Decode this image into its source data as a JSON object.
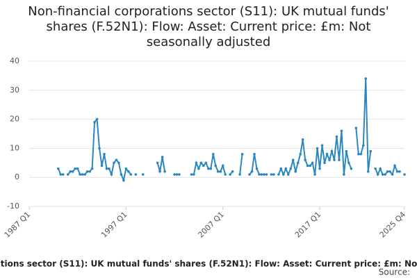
{
  "chart_data": {
    "type": "line",
    "title": "Non-financial corporations sector (S11): UK mutual funds' shares (F.52N1): Flow: Asset: Current price: £m: Not seasonally adjusted",
    "source": "Source:",
    "categories": [
      "1987 Q1",
      null,
      null,
      null,
      null,
      null,
      null,
      null,
      null,
      null,
      null,
      null,
      null,
      null,
      null,
      null,
      null,
      null,
      null,
      null,
      null,
      null,
      null,
      null,
      null,
      null,
      null,
      null,
      null,
      null,
      null,
      null,
      null,
      null,
      null,
      null,
      null,
      null,
      null,
      null,
      "1997 Q1",
      null,
      null,
      null,
      null,
      null,
      null,
      null,
      null,
      null,
      null,
      null,
      null,
      null,
      null,
      null,
      null,
      null,
      null,
      null,
      null,
      null,
      null,
      null,
      null,
      null,
      null,
      null,
      null,
      null,
      null,
      null,
      null,
      null,
      null,
      null,
      null,
      null,
      null,
      null,
      "2007 Q1",
      null,
      null,
      null,
      null,
      null,
      null,
      null,
      null,
      null,
      null,
      null,
      null,
      null,
      null,
      null,
      null,
      null,
      null,
      null,
      null,
      null,
      null,
      null,
      null,
      null,
      null,
      null,
      null,
      null,
      null,
      null,
      null,
      null,
      null,
      null,
      null,
      null,
      null,
      null,
      "2017 Q1",
      null,
      null,
      null,
      null,
      null,
      null,
      null,
      null,
      null,
      null,
      null,
      null,
      null,
      null,
      null,
      null,
      null,
      null,
      null,
      null,
      null,
      null,
      null,
      null,
      null,
      null,
      null,
      null,
      null,
      null,
      null,
      null,
      null,
      null,
      "2025 Q4"
    ],
    "series": [
      {
        "name": "Non-financial corporations sector (S11): UK mutual funds' shares (F.52N1): Flow: Asset: Current price: £m: Not seasonally adjusted",
        "color": "#2a86c0",
        "values": [
          null,
          null,
          null,
          null,
          null,
          null,
          null,
          null,
          null,
          null,
          null,
          null,
          3,
          1,
          1,
          null,
          1,
          2,
          2,
          3,
          3,
          1,
          1,
          1,
          2,
          2,
          3,
          19,
          20,
          10,
          4,
          8,
          3,
          3,
          1,
          5,
          6,
          5,
          1,
          -1,
          3,
          2,
          1,
          null,
          1,
          null,
          null,
          1,
          null,
          null,
          null,
          null,
          null,
          5,
          2,
          7,
          2,
          null,
          null,
          null,
          1,
          1,
          1,
          null,
          null,
          null,
          null,
          1,
          1,
          5,
          3,
          5,
          4,
          5,
          3,
          3,
          8,
          4,
          2,
          2,
          4,
          1,
          null,
          1,
          2,
          null,
          null,
          1,
          8,
          null,
          null,
          1,
          2,
          8,
          3,
          1,
          1,
          1,
          1,
          null,
          1,
          1,
          null,
          1,
          3,
          1,
          3,
          1,
          3,
          6,
          2,
          5,
          8,
          13,
          6,
          4,
          4,
          5,
          1,
          10,
          3,
          11,
          5,
          8,
          6,
          9,
          6,
          14,
          6,
          16,
          1,
          9,
          5,
          3,
          null,
          17,
          8,
          8,
          11,
          34,
          2,
          9,
          null,
          3,
          1,
          3,
          1,
          1,
          2,
          2,
          1,
          4,
          2,
          2,
          null,
          1
        ]
      }
    ],
    "ylim": [
      -10,
      40
    ],
    "yticks": [
      -10,
      0,
      10,
      20,
      30,
      40
    ],
    "grid": true
  }
}
